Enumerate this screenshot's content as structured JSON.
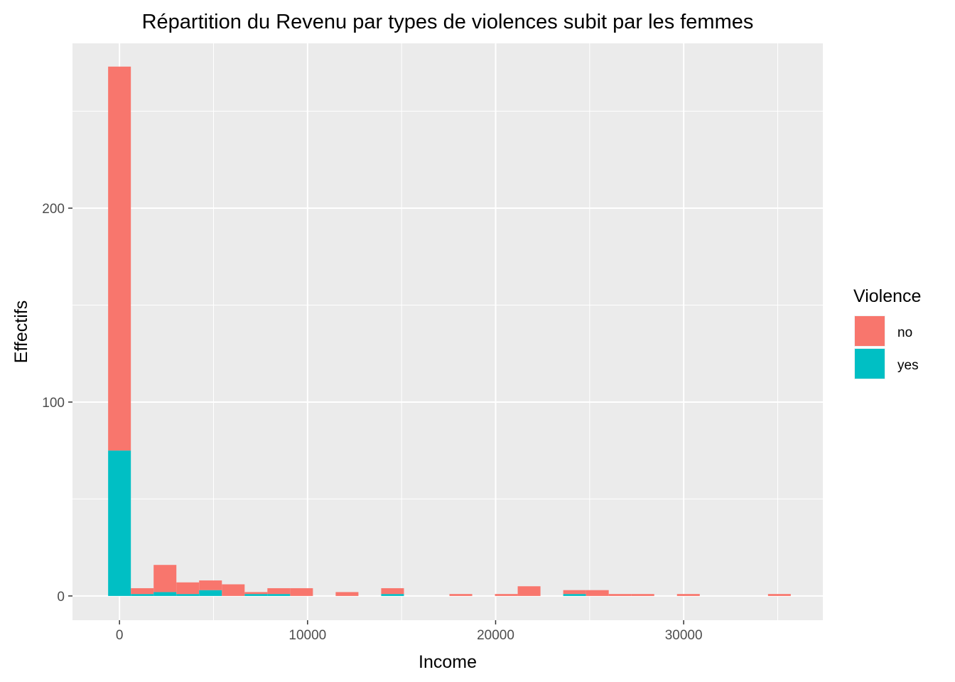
{
  "chart_data": {
    "type": "bar",
    "subtype": "stacked-histogram",
    "title": "Répartition du Revenu par types de violences subit par les femmes",
    "xlabel": "Income",
    "ylabel": "Effectifs",
    "xlim": [
      -2500,
      37400
    ],
    "ylim": [
      -12.5,
      285
    ],
    "x_ticks": [
      0,
      10000,
      20000,
      30000
    ],
    "x_tick_labels": [
      "0",
      "10000",
      "20000",
      "30000"
    ],
    "y_ticks": [
      0,
      100,
      200
    ],
    "y_tick_labels": [
      "0",
      "100",
      "200"
    ],
    "bin_width": 1210,
    "grid": true,
    "legend": {
      "title": "Violence",
      "position": "right",
      "entries": [
        "no",
        "yes"
      ]
    },
    "bins_start": [
      -605,
      605,
      1815,
      3025,
      4235,
      5445,
      6655,
      7865,
      9075,
      10285,
      11495,
      12705,
      13915,
      15125,
      16335,
      17545,
      18755,
      19965,
      21175,
      22385,
      23595,
      24805,
      26015,
      27225,
      28435,
      29645,
      30855,
      32065,
      33275,
      34485
    ],
    "series": [
      {
        "name": "yes",
        "color": "#00BFC4",
        "values": [
          75,
          1,
          2,
          1,
          3,
          0,
          1,
          1,
          0,
          0,
          0,
          0,
          1,
          0,
          0,
          0,
          0,
          0,
          0,
          0,
          1,
          0,
          0,
          0,
          0,
          0,
          0,
          0,
          0,
          0
        ]
      },
      {
        "name": "no",
        "color": "#F8766D",
        "values": [
          198,
          3,
          14,
          6,
          5,
          6,
          1,
          3,
          4,
          0,
          2,
          0,
          3,
          0,
          0,
          1,
          0,
          1,
          5,
          0,
          2,
          3,
          1,
          1,
          0,
          1,
          0,
          0,
          0,
          1
        ]
      }
    ]
  }
}
